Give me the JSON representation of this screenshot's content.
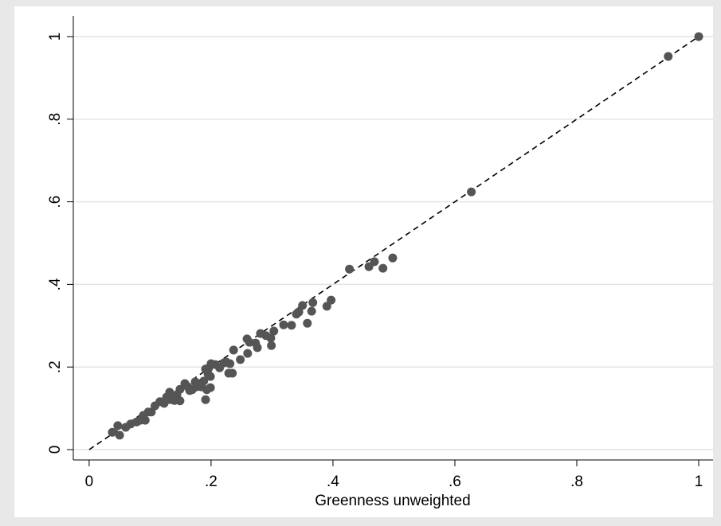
{
  "chart_data": {
    "type": "scatter",
    "x_label": "Greenness unweighted",
    "x": [
      1,
      0.95,
      0.627,
      0.498,
      0.482,
      0.468,
      0.459,
      0.427,
      0.397,
      0.39,
      0.367,
      0.358,
      0.365,
      0.35,
      0.344,
      0.34,
      0.332,
      0.319,
      0.303,
      0.299,
      0.298,
      0.29,
      0.281,
      0.276,
      0.273,
      0.263,
      0.26,
      0.259,
      0.248,
      0.237,
      0.235,
      0.229,
      0.231,
      0.225,
      0.221,
      0.214,
      0.207,
      0.2,
      0.196,
      0.191,
      0.193,
      0.199,
      0.199,
      0.195,
      0.191,
      0.188,
      0.184,
      0.18,
      0.176,
      0.174,
      0.169,
      0.165,
      0.162,
      0.157,
      0.149,
      0.149,
      0.144,
      0.14,
      0.136,
      0.133,
      0.132,
      0.127,
      0.123,
      0.116,
      0.108,
      0.102,
      0.097,
      0.092,
      0.089,
      0.084,
      0.078,
      0.068,
      0.06,
      0.05,
      0.047,
      0.038
    ],
    "y": [
      1,
      0.952,
      0.624,
      0.464,
      0.439,
      0.455,
      0.443,
      0.437,
      0.362,
      0.347,
      0.356,
      0.306,
      0.335,
      0.349,
      0.333,
      0.328,
      0.301,
      0.302,
      0.287,
      0.252,
      0.27,
      0.276,
      0.281,
      0.247,
      0.258,
      0.26,
      0.233,
      0.268,
      0.218,
      0.241,
      0.185,
      0.185,
      0.208,
      0.212,
      0.21,
      0.198,
      0.206,
      0.208,
      0.197,
      0.121,
      0.145,
      0.15,
      0.177,
      0.183,
      0.195,
      0.166,
      0.152,
      0.16,
      0.152,
      0.164,
      0.145,
      0.143,
      0.152,
      0.16,
      0.146,
      0.118,
      0.133,
      0.119,
      0.129,
      0.121,
      0.139,
      0.127,
      0.112,
      0.116,
      0.106,
      0.091,
      0.091,
      0.071,
      0.083,
      0.071,
      0.067,
      0.062,
      0.054,
      0.035,
      0.058,
      0.042
    ],
    "color": "#555555",
    "reference_line": {
      "x": [
        0,
        1
      ],
      "y": [
        0,
        1
      ],
      "dashed": true,
      "color": "#000000"
    },
    "xlim": [
      -0.026,
      1.0235
    ],
    "ylim": [
      -0.025,
      1.05
    ],
    "xticks": [
      0,
      {
        "value": 0.2,
        "label": ".2"
      },
      {
        "value": 0.4,
        "label": ".4"
      },
      {
        "value": 0.6,
        "label": ".6"
      },
      {
        "value": 0.8,
        "label": ".8"
      },
      1
    ],
    "yticks": [
      0,
      {
        "value": 0.2,
        "label": ".2"
      },
      {
        "value": 0.4,
        "label": ".4"
      },
      {
        "value": 0.6,
        "label": ".6"
      },
      {
        "value": 0.8,
        "label": ".8"
      },
      1
    ],
    "grid": true
  }
}
